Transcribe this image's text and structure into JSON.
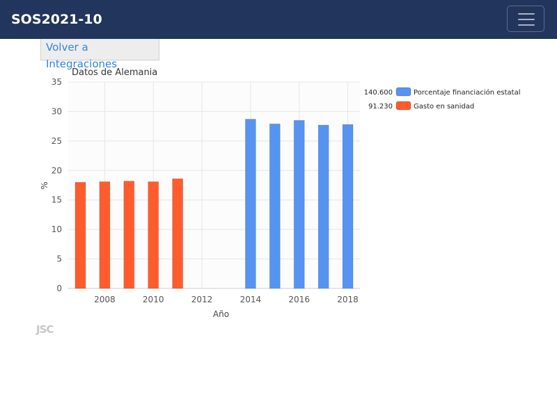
{
  "navbar": {
    "brand": "SOS2021-10",
    "menu_icon": "hamburger-menu-icon"
  },
  "back_button": {
    "label": "Volver a Integraciones"
  },
  "logo": {
    "text": "JSC"
  },
  "colors": {
    "navbar_bg": "#22355d",
    "series_blue": "#5794f2",
    "series_orange": "#ff5c2e"
  },
  "chart_data": {
    "type": "bar",
    "title": "Datos de Alemania",
    "xlabel": "Año",
    "ylabel": "%",
    "xlim": [
      2006.5,
      2018.5
    ],
    "ylim": [
      0,
      35
    ],
    "y_ticks": [
      0,
      5,
      10,
      15,
      20,
      25,
      30,
      35
    ],
    "x_ticks": [
      2008,
      2010,
      2012,
      2014,
      2016,
      2018
    ],
    "grid": true,
    "legend_position": "top-right",
    "series": [
      {
        "name": "Porcentaje financiación estatal",
        "legend_value": "140.600",
        "color": "#5794f2",
        "x": [
          2014,
          2015,
          2016,
          2017,
          2018
        ],
        "values": [
          28.7,
          27.9,
          28.5,
          27.7,
          27.8
        ]
      },
      {
        "name": "Gasto en sanidad",
        "legend_value": "91.230",
        "color": "#ff5c2e",
        "x": [
          2007,
          2008,
          2009,
          2010,
          2011
        ],
        "values": [
          18.0,
          18.1,
          18.2,
          18.1,
          18.6
        ]
      }
    ]
  }
}
